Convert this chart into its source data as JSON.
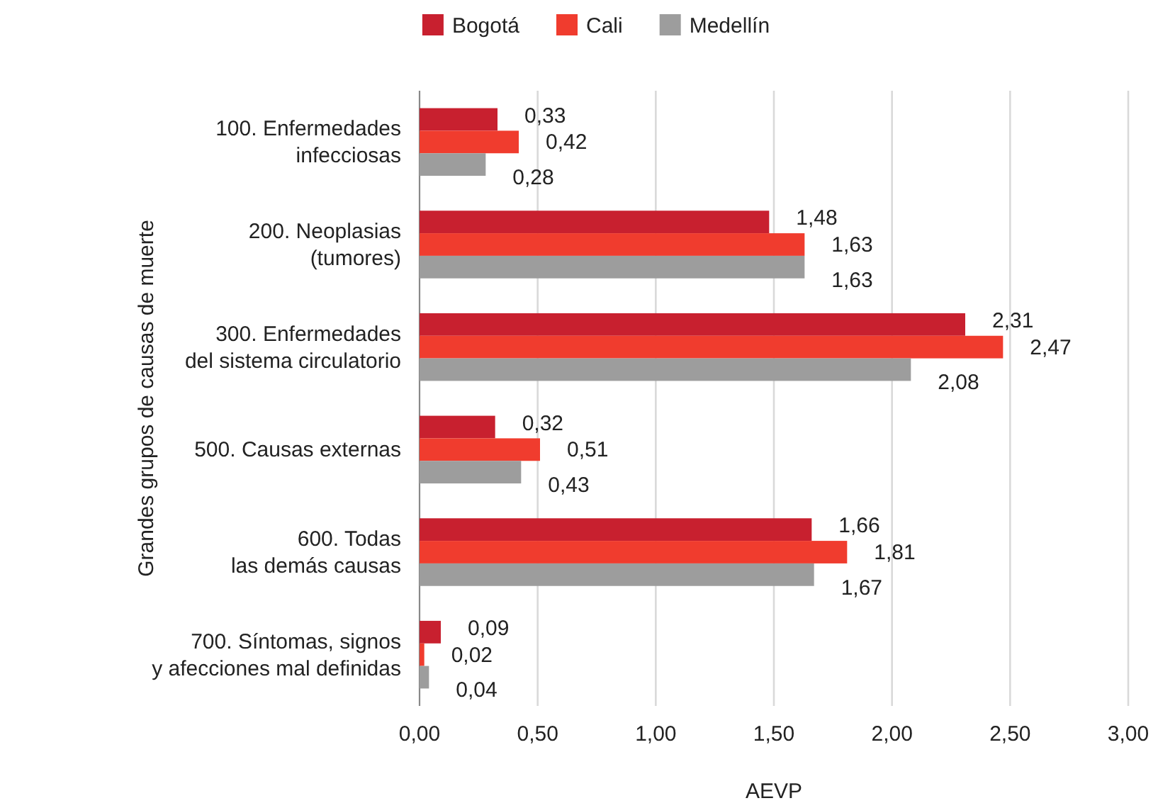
{
  "chart_data": {
    "type": "bar",
    "orientation": "horizontal",
    "xlabel": "AEVP",
    "ylabel": "Grandes grupos de causas de muerte",
    "categories": [
      "100. Enfermedades\ninfecciosas",
      "200. Neoplasias\n(tumores)",
      "300. Enfermedades\ndel sistema circulatorio",
      "500. Causas externas",
      "600. Todas\nlas demás causas",
      "700. Síntomas, signos\ny afecciones mal definidas"
    ],
    "series": [
      {
        "name": "Bogotá",
        "color": "#c8202f",
        "values": [
          0.33,
          1.48,
          2.31,
          0.32,
          1.66,
          0.09
        ],
        "value_labels": [
          "0,33",
          "1,48",
          "2,31",
          "0,32",
          "1,66",
          "0,09"
        ]
      },
      {
        "name": "Cali",
        "color": "#f03c2e",
        "values": [
          0.42,
          1.63,
          2.47,
          0.51,
          1.81,
          0.02
        ],
        "value_labels": [
          "0,42",
          "1,63",
          "2,47",
          "0,51",
          "1,81",
          "0,02"
        ]
      },
      {
        "name": "Medellín",
        "color": "#9d9d9d",
        "values": [
          0.28,
          1.63,
          2.08,
          0.43,
          1.67,
          0.04
        ],
        "value_labels": [
          "0,28",
          "1,63",
          "2,08",
          "0,43",
          "1,67",
          "0,04"
        ]
      }
    ],
    "xlim": [
      0,
      3
    ],
    "xticks": [
      {
        "value": 0,
        "label": "0,00"
      },
      {
        "value": 0.5,
        "label": "0,50"
      },
      {
        "value": 1,
        "label": "1,00"
      },
      {
        "value": 1.5,
        "label": "1,50"
      },
      {
        "value": 2,
        "label": "2,00"
      },
      {
        "value": 2.5,
        "label": "2,50"
      },
      {
        "value": 3,
        "label": "3,00"
      }
    ],
    "grid": "x",
    "legend": "top"
  }
}
